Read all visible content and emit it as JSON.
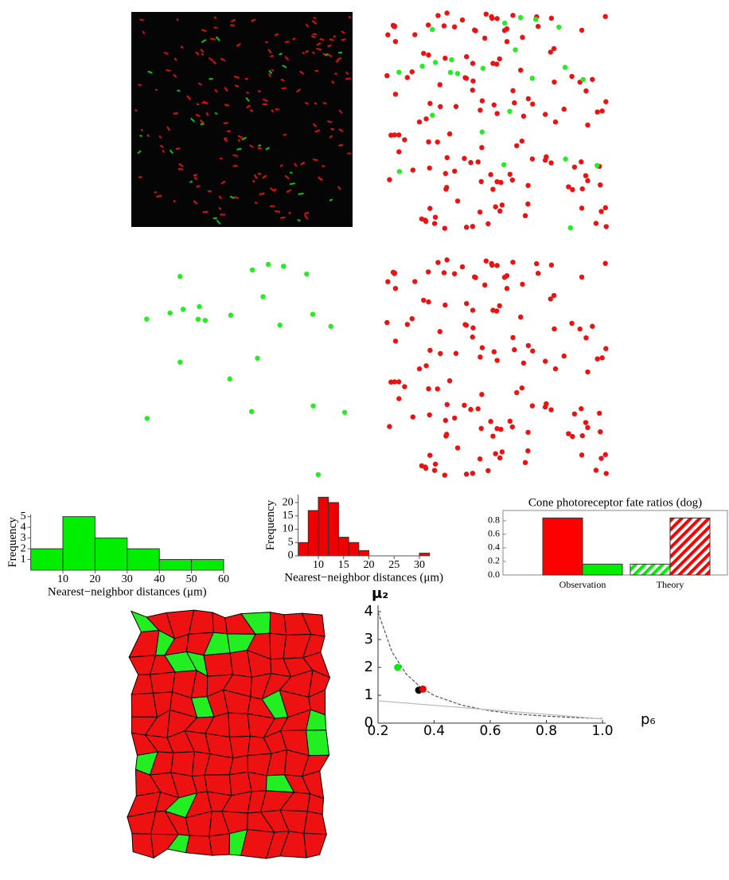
{
  "chart_data": [
    {
      "type": "histogram",
      "bins": [
        0,
        10,
        20,
        30,
        40,
        50,
        60
      ],
      "values": [
        2,
        5,
        3,
        2,
        1,
        1
      ],
      "color": "#00ee00",
      "xlim": [
        0,
        60
      ],
      "ylim": [
        0,
        5.2
      ],
      "xticks": [
        10,
        20,
        30,
        40,
        50,
        60
      ],
      "yticks": [
        1,
        2,
        3,
        4,
        5
      ],
      "xlabel": "Nearest−neighbor distances (μm)",
      "ylabel": "Frequency"
    },
    {
      "type": "histogram",
      "bins": [
        6,
        8,
        10,
        12,
        14,
        16,
        18,
        20,
        22,
        24,
        26,
        28,
        30,
        32
      ],
      "values": [
        5,
        17,
        22,
        20,
        7,
        5,
        2,
        0,
        0,
        0,
        0,
        0,
        1
      ],
      "color": "#ee0000",
      "xlim": [
        6,
        32
      ],
      "ylim": [
        0,
        23
      ],
      "xticks": [
        10,
        15,
        20,
        25,
        30
      ],
      "yticks": [
        0,
        5,
        10,
        15,
        20
      ],
      "xlabel": "Nearest−neighbor distances (μm)",
      "ylabel": "Frequency"
    },
    {
      "type": "bar",
      "title": "Cone photoreceptor fate ratios (dog)",
      "categories": [
        "Observation",
        "Theory"
      ],
      "bars": [
        [
          {
            "color": "#ff0000",
            "value": 0.84,
            "hatched": false
          },
          {
            "color": "#00ee00",
            "value": 0.16,
            "hatched": false
          }
        ],
        [
          {
            "color": "#00ee00",
            "value": 0.16,
            "hatched": true
          },
          {
            "color": "#ff0000",
            "value": 0.84,
            "hatched": true
          }
        ]
      ],
      "ylim": [
        0,
        0.88
      ],
      "yticks": [
        {
          "value": 0,
          "label": "0.0"
        },
        0.2,
        0.4,
        0.6,
        0.8
      ]
    },
    {
      "type": "line",
      "xlabel": "p₆",
      "ylabel": "μ₂",
      "xlim": [
        0.2,
        1.0
      ],
      "ylim": [
        0,
        4
      ],
      "xticks": [
        0.2,
        0.4,
        0.6,
        0.8,
        {
          "value": 1,
          "label": "1.0"
        }
      ],
      "yticks": [
        0,
        1,
        2,
        3,
        4
      ],
      "series": [
        {
          "color": "#555555",
          "dashed": true,
          "x": [
            0.2,
            0.25,
            0.3,
            0.35,
            0.4,
            0.5,
            0.6,
            0.7,
            0.8,
            0.9,
            1.0
          ],
          "values": [
            3.98,
            2.55,
            1.77,
            1.3,
            0.99,
            0.64,
            0.44,
            0.32,
            0.25,
            0.2,
            0.16
          ]
        },
        {
          "color": "#bbbbbb",
          "dashed": false,
          "x": [
            0.2,
            1.0
          ],
          "values": [
            0.8,
            0.15
          ]
        }
      ],
      "points": [
        {
          "x": 0.27,
          "y": 2.0,
          "color": "#00ee00"
        },
        {
          "x": 0.345,
          "y": 1.18,
          "color": "#000000"
        },
        {
          "x": 0.36,
          "y": 1.22,
          "color": "#ee0000"
        }
      ]
    }
  ]
}
